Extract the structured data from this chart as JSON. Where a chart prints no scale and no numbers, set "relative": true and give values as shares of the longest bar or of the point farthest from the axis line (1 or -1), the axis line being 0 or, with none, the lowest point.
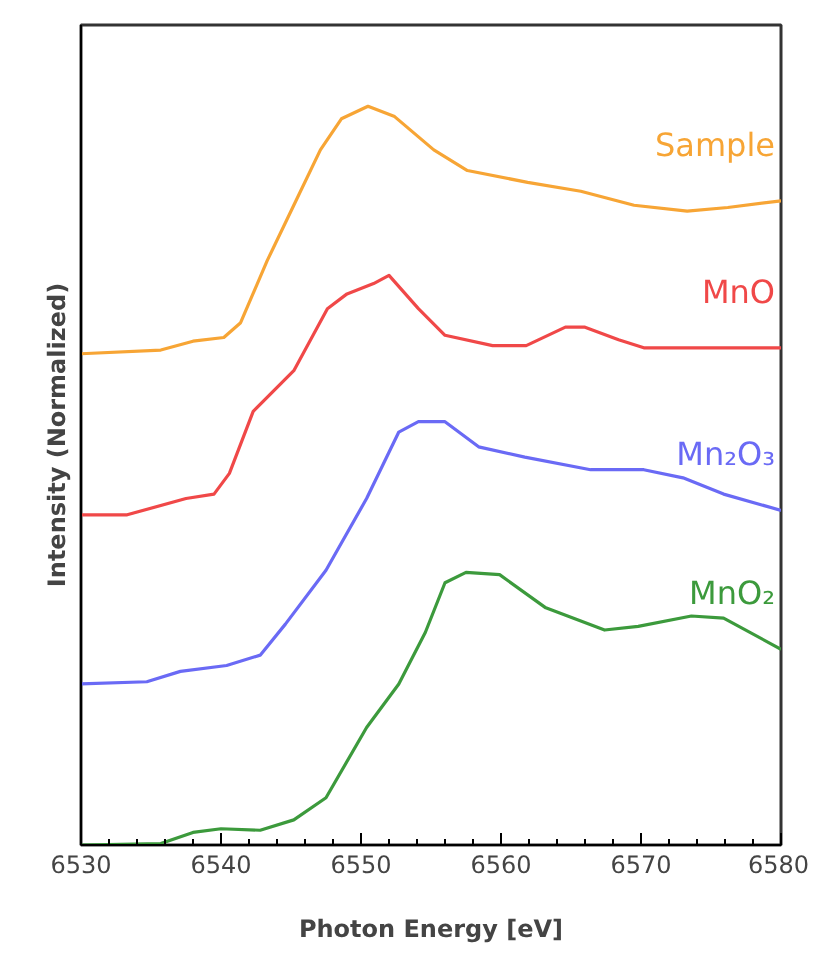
{
  "chart_data": {
    "type": "line",
    "relative": true,
    "xlabel": "Photon Energy [eV]",
    "ylabel": "Intensity (Normalized)",
    "xlim": [
      6530,
      6580
    ],
    "xticks": [
      6530,
      6540,
      6550,
      6560,
      6570,
      6580
    ],
    "grid": false,
    "marker": "none",
    "line_style": "solid",
    "series": [
      {
        "name": "Sample",
        "color": "#f7a535",
        "x": [
          6530,
          6535.7,
          6538,
          6540.2,
          6541.4,
          6543.3,
          6545.2,
          6547.1,
          6548.6,
          6550.5,
          6552.4,
          6555.2,
          6557.6,
          6561.9,
          6565.7,
          6569.5,
          6573.3,
          6576.2,
          6580
        ],
        "values": [
          0.665,
          0.67,
          0.682,
          0.687,
          0.707,
          0.791,
          0.866,
          0.941,
          0.983,
          1.0,
          0.986,
          0.941,
          0.913,
          0.897,
          0.885,
          0.866,
          0.858,
          0.863,
          0.872
        ]
      },
      {
        "name": "MnO",
        "color": "#f04848",
        "x": [
          6530,
          6533.3,
          6537.5,
          6539.5,
          6540.6,
          6542.3,
          6545.2,
          6547.6,
          6549,
          6550.9,
          6552,
          6554.1,
          6556,
          6559.4,
          6561.8,
          6564.6,
          6566,
          6568.4,
          6570.2,
          6580
        ],
        "values": [
          0.447,
          0.447,
          0.469,
          0.475,
          0.503,
          0.587,
          0.642,
          0.726,
          0.746,
          0.76,
          0.771,
          0.726,
          0.69,
          0.676,
          0.676,
          0.701,
          0.701,
          0.684,
          0.673,
          0.673
        ]
      },
      {
        "name": "Mn₂O₃",
        "color": "#6a6af5",
        "x": [
          6530,
          6534.7,
          6537.1,
          6540.4,
          6542.8,
          6544.6,
          6547.5,
          6550.4,
          6552.7,
          6554.1,
          6556,
          6558.4,
          6561.7,
          6566.4,
          6570.2,
          6573,
          6575.9,
          6580
        ],
        "values": [
          0.218,
          0.221,
          0.235,
          0.243,
          0.257,
          0.299,
          0.372,
          0.469,
          0.559,
          0.573,
          0.573,
          0.539,
          0.525,
          0.508,
          0.508,
          0.497,
          0.475,
          0.453
        ]
      },
      {
        "name": "MnO₂",
        "color": "#3c9a3c",
        "x": [
          6530,
          6535.7,
          6538,
          6540,
          6542.8,
          6545.2,
          6547.5,
          6550.4,
          6552.7,
          6554.6,
          6556,
          6557.5,
          6559.9,
          6563.2,
          6567.4,
          6569.8,
          6573.6,
          6575.9,
          6580
        ],
        "values": [
          0,
          0.002,
          0.017,
          0.022,
          0.02,
          0.034,
          0.064,
          0.159,
          0.218,
          0.288,
          0.355,
          0.369,
          0.366,
          0.321,
          0.291,
          0.296,
          0.31,
          0.307,
          0.265
        ]
      }
    ]
  }
}
